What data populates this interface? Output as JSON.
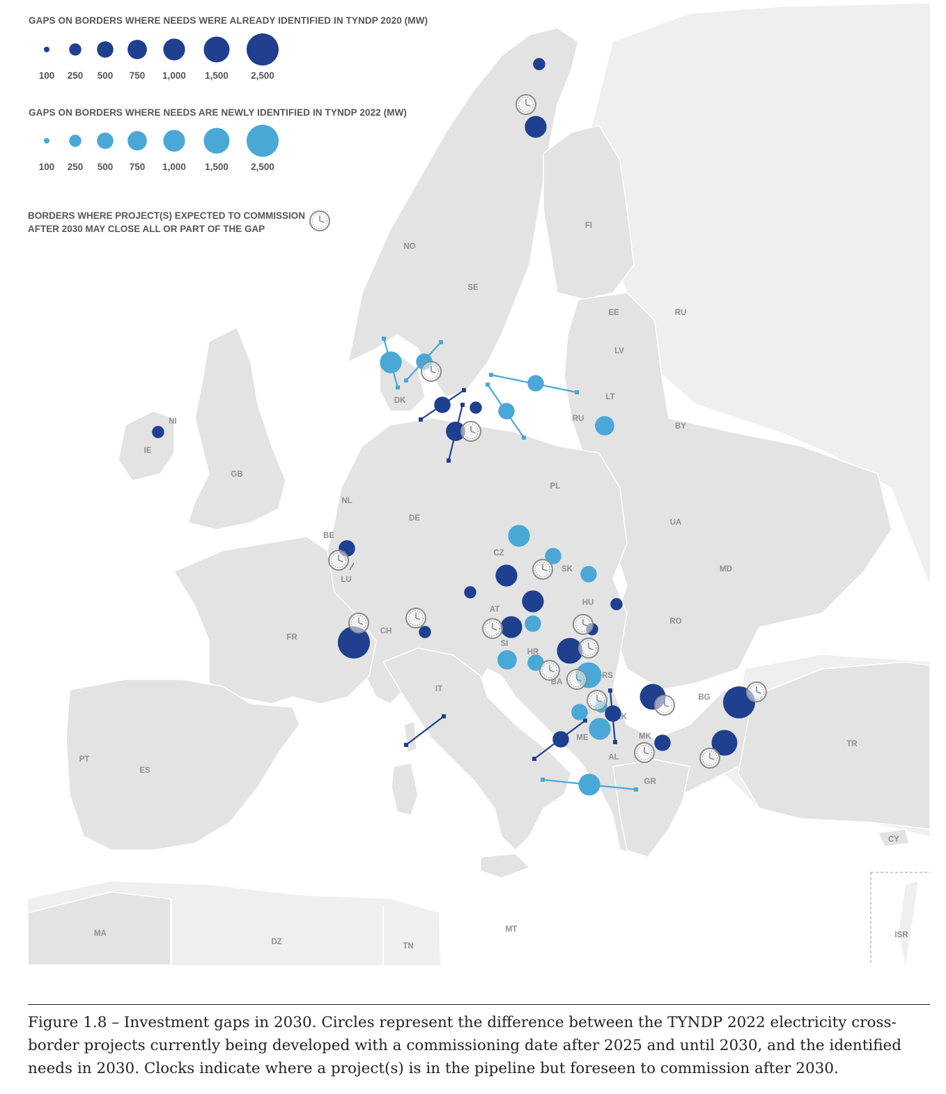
{
  "legend": {
    "title_2020": "GAPS ON BORDERS WHERE NEEDS WERE ALREADY IDENTIFIED IN TYNDP 2020 (MW)",
    "title_2022": "GAPS ON BORDERS WHERE NEEDS ARE NEWLY IDENTIFIED IN TYNDP 2022 (MW)",
    "sizes": [
      "100",
      "250",
      "500",
      "750",
      "1,000",
      "1,500",
      "2,500"
    ],
    "size_values": [
      100,
      250,
      500,
      750,
      1000,
      1500,
      2500
    ],
    "commission_line1": "BORDERS WHERE PROJECT(S) EXPECTED TO COMMISSION",
    "commission_line2": "AFTER 2030 MAY CLOSE ALL OR PART OF THE GAP",
    "commission_icon": "clock-icon"
  },
  "colors": {
    "tyndp_2020": "#1f3f8f",
    "tyndp_2022": "#4aa8d6",
    "land": "#e3e3e3",
    "land_outside": "#efefef",
    "clock": "#8a8a8a"
  },
  "countries": [
    "NO",
    "SE",
    "FI",
    "EE",
    "RU",
    "LV",
    "LT",
    "RU",
    "BY",
    "DK",
    "NI",
    "IE",
    "GB",
    "NL",
    "BE",
    "LU",
    "DE",
    "PL",
    "CZ",
    "SK",
    "UA",
    "MD",
    "AT",
    "HU",
    "RO",
    "CH",
    "FR",
    "SI",
    "HR",
    "BA",
    "RS",
    "IT",
    "ME",
    "XK",
    "BG",
    "MK",
    "AL",
    "GR",
    "TR",
    "PT",
    "ES",
    "CY",
    "MA",
    "DZ",
    "TN",
    "MT",
    "ISR"
  ],
  "caption": "Figure 1.8 – Investment gaps in 2030. Circles represent the difference between the TYNDP 2022 electricity cross-border projects currently being developed with a commissioning date after 2025 and until 2030, and the identified needs in 2030. Clocks indicate where a project(s) is in the pipeline but foreseen to commission after 2030.",
  "caption_lines": [
    "Figure 1.8 – Investment gaps in 2030. Circles represent the difference between the TYNDP 2022 electricity cross-",
    "border projects currently being developed with a commissioning date after 2025 and until 2030, and the identified",
    "needs in 2030. Clocks indicate where a project(s) is in the pipeline but foreseen to commission after 2030."
  ]
}
